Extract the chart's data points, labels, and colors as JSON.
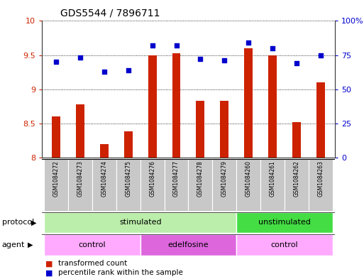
{
  "title": "GDS5544 / 7896711",
  "samples": [
    "GSM1084272",
    "GSM1084273",
    "GSM1084274",
    "GSM1084275",
    "GSM1084276",
    "GSM1084277",
    "GSM1084278",
    "GSM1084279",
    "GSM1084260",
    "GSM1084261",
    "GSM1084262",
    "GSM1084263"
  ],
  "bar_values": [
    8.6,
    8.78,
    8.2,
    8.38,
    9.5,
    9.53,
    8.83,
    8.83,
    9.6,
    9.5,
    8.52,
    9.1
  ],
  "dot_values": [
    70,
    73,
    63,
    64,
    82,
    82,
    72,
    71,
    84,
    80,
    69,
    75
  ],
  "ylim_left": [
    8.0,
    10.0
  ],
  "ylim_right": [
    0,
    100
  ],
  "yticks_left": [
    8.0,
    8.5,
    9.0,
    9.5,
    10.0
  ],
  "yticks_left_labels": [
    "8",
    "8.5",
    "9",
    "9.5",
    "10"
  ],
  "yticks_right": [
    0,
    25,
    50,
    75,
    100
  ],
  "yticks_right_labels": [
    "0",
    "25",
    "50",
    "75",
    "100%"
  ],
  "bar_color": "#CC2200",
  "dot_color": "#0000CC",
  "protocol_groups": [
    {
      "label": "stimulated",
      "start": 0,
      "end": 8,
      "color": "#BBEEAA"
    },
    {
      "label": "unstimulated",
      "start": 8,
      "end": 12,
      "color": "#44DD44"
    }
  ],
  "agent_groups": [
    {
      "label": "control",
      "start": 0,
      "end": 4,
      "color": "#FFAAFF"
    },
    {
      "label": "edelfosine",
      "start": 4,
      "end": 8,
      "color": "#DD66DD"
    },
    {
      "label": "control",
      "start": 8,
      "end": 12,
      "color": "#FFAAFF"
    }
  ],
  "legend_bar_label": "transformed count",
  "legend_dot_label": "percentile rank within the sample",
  "protocol_label": "protocol",
  "agent_label": "agent",
  "bg_color": "#FFFFFF",
  "tick_color_left": "#CC2200",
  "tick_color_right": "#0000CC",
  "label_bg": "#C8C8C8"
}
